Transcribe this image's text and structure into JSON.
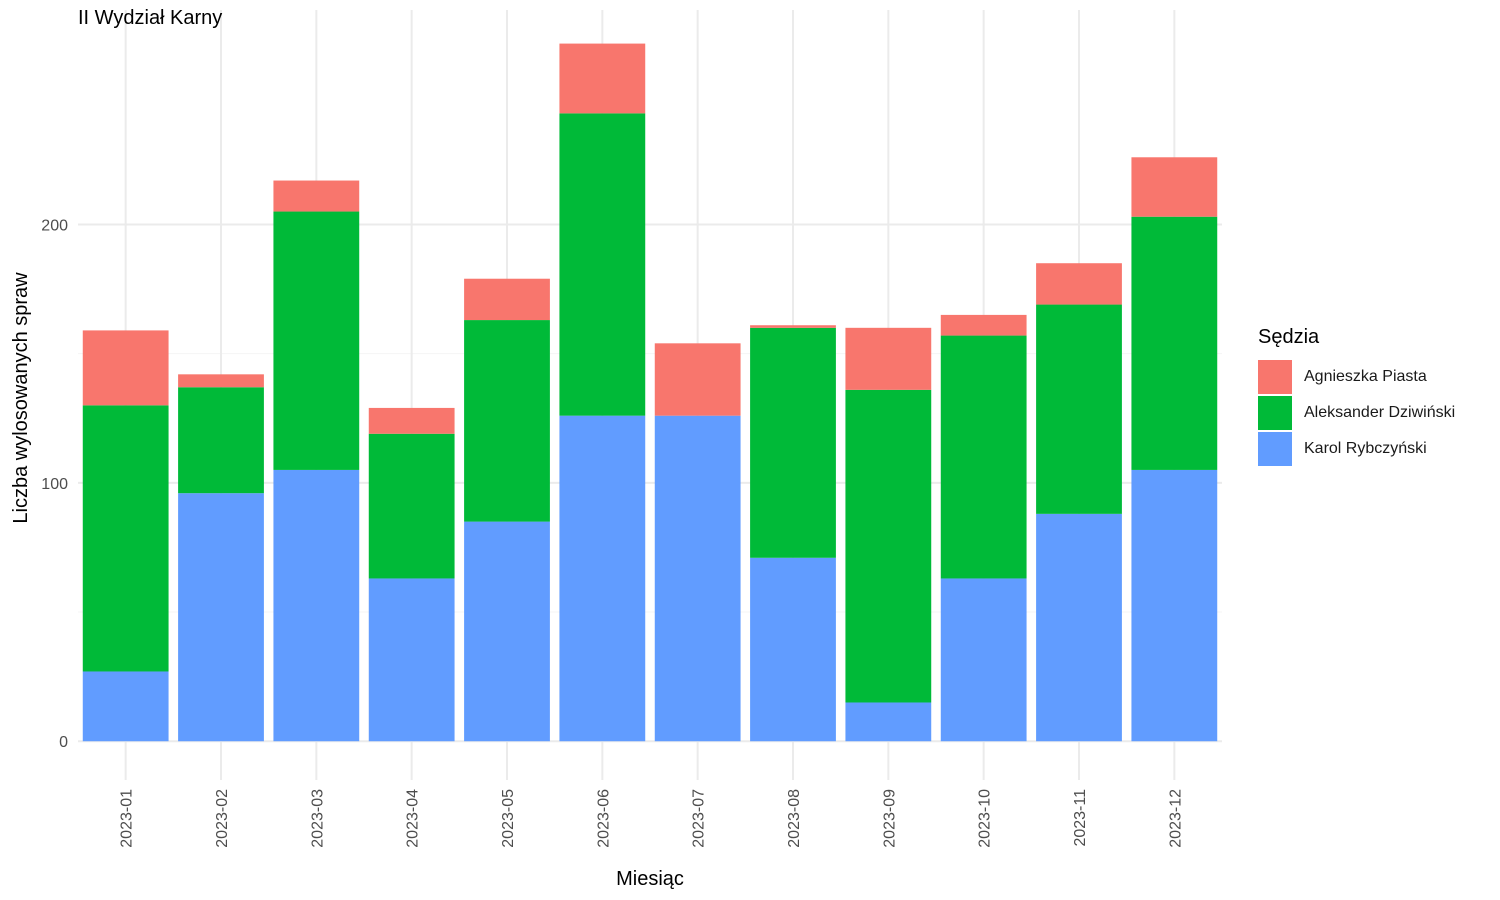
{
  "chart_data": {
    "type": "bar",
    "stacked": true,
    "title": "II Wydział Karny",
    "xlabel": "Miesiąc",
    "ylabel": "Liczba wylosowanych spraw",
    "ylim": [
      -15,
      283
    ],
    "yticks": [
      0,
      100,
      200
    ],
    "grid": true,
    "legend_title": "Sędzia",
    "legend_position": "right",
    "categories": [
      "2023-01",
      "2023-02",
      "2023-03",
      "2023-04",
      "2023-05",
      "2023-06",
      "2023-07",
      "2023-08",
      "2023-09",
      "2023-10",
      "2023-11",
      "2023-12"
    ],
    "series": [
      {
        "name": "Karol Rybczyński",
        "color": "#619CFF",
        "values": [
          27,
          96,
          105,
          63,
          85,
          126,
          126,
          71,
          15,
          63,
          88,
          105
        ]
      },
      {
        "name": "Aleksander Dziwiński",
        "color": "#00BA38",
        "values": [
          103,
          41,
          100,
          56,
          78,
          117,
          0,
          89,
          121,
          94,
          81,
          98
        ]
      },
      {
        "name": "Agnieszka Piasta",
        "color": "#F8766D",
        "values": [
          29,
          5,
          12,
          10,
          16,
          27,
          28,
          1,
          24,
          8,
          16,
          23
        ]
      }
    ],
    "legend_order": [
      "Agnieszka Piasta",
      "Aleksander Dziwiński",
      "Karol Rybczyński"
    ]
  }
}
